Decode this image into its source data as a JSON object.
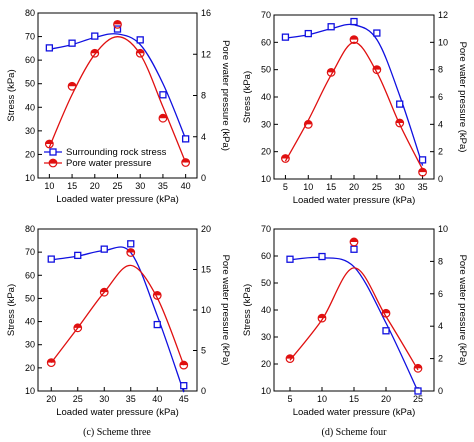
{
  "chart_data": [
    {
      "type": "line",
      "panel": "top-left",
      "caption": "",
      "xlabel": "Loaded water pressure (kPa)",
      "ylabel": "Stress (kPa)",
      "y2label": "Pore water pressure (kPa)",
      "xlim": [
        7.5,
        42.5
      ],
      "xticks": [
        10,
        15,
        20,
        25,
        30,
        35,
        40
      ],
      "ylim": [
        10,
        80
      ],
      "yticks": [
        10,
        20,
        30,
        40,
        50,
        60,
        70,
        80
      ],
      "y2lim": [
        0,
        16
      ],
      "y2ticks": [
        0,
        4,
        8,
        12,
        16
      ],
      "legend": "bottom-left",
      "series": [
        {
          "name": "Surrounding rock stress",
          "axis": "left",
          "color": "#1010e0",
          "marker": "square",
          "x": [
            10,
            15,
            20,
            25,
            30,
            35,
            40
          ],
          "y": [
            65.2,
            67.2,
            70.2,
            73.2,
            68.6,
            45.3,
            26.6
          ],
          "curve_x": [
            10,
            15,
            20,
            25,
            30,
            35,
            40
          ],
          "curve_y": [
            64.6,
            66.6,
            69.6,
            71.1,
            66.6,
            50.1,
            26.6
          ]
        },
        {
          "name": "Pore water pressure",
          "axis": "right",
          "color": "#e01010",
          "marker": "half-circle",
          "x": [
            10,
            15,
            20,
            25,
            30,
            35,
            40
          ],
          "y": [
            3.3,
            8.9,
            12.1,
            14.9,
            12.1,
            5.8,
            1.5
          ],
          "curve_x": [
            10,
            15,
            20,
            25,
            30,
            35,
            40
          ],
          "curve_y": [
            3.0,
            8.1,
            12.0,
            13.7,
            12.0,
            6.9,
            1.5
          ]
        }
      ]
    },
    {
      "type": "line",
      "panel": "top-right",
      "caption": "",
      "xlabel": "Loaded water pressure (kPa)",
      "ylabel": "Stress (kPa)",
      "y2label": "Pore water pressure (kPa)",
      "xlim": [
        2.5,
        37.5
      ],
      "xticks": [
        5,
        10,
        15,
        20,
        25,
        30,
        35
      ],
      "ylim": [
        10,
        70
      ],
      "yticks": [
        10,
        20,
        30,
        40,
        50,
        60,
        70
      ],
      "y2lim": [
        0,
        12
      ],
      "y2ticks": [
        0,
        2,
        4,
        6,
        8,
        10,
        12
      ],
      "legend": "",
      "series": [
        {
          "name": "",
          "axis": "left",
          "color": "#1010e0",
          "marker": "square",
          "x": [
            5,
            10,
            15,
            20,
            25,
            30,
            35
          ],
          "y": [
            61.9,
            63.2,
            65.7,
            67.6,
            63.4,
            37.4,
            17.0
          ],
          "curve_x": [
            5,
            10,
            15,
            20,
            25,
            30,
            35
          ],
          "curve_y": [
            61.5,
            62.8,
            65.0,
            66.4,
            61.0,
            40.5,
            14.9
          ]
        },
        {
          "name": "",
          "axis": "right",
          "color": "#e01010",
          "marker": "half-circle",
          "x": [
            5,
            10,
            15,
            20,
            25,
            30,
            35
          ],
          "y": [
            1.5,
            4.0,
            7.8,
            10.2,
            8.0,
            4.1,
            0.5
          ],
          "curve_x": [
            5,
            10,
            15,
            20,
            25,
            30,
            35
          ],
          "curve_y": [
            1.3,
            4.3,
            7.6,
            10.0,
            7.8,
            4.0,
            0.7
          ]
        }
      ]
    },
    {
      "type": "line",
      "panel": "bottom-left",
      "caption": "(c) Scheme three",
      "xlabel": "Loaded water pressure (kPa)",
      "ylabel": "Stress (kPa)",
      "y2label": "Pore water pressure (kPa)",
      "xlim": [
        17.5,
        47.5
      ],
      "xticks": [
        20,
        25,
        30,
        35,
        40,
        45
      ],
      "ylim": [
        10,
        80
      ],
      "yticks": [
        10,
        20,
        30,
        40,
        50,
        60,
        70,
        80
      ],
      "y2lim": [
        0,
        20
      ],
      "y2ticks": [
        0,
        5,
        10,
        15,
        20
      ],
      "legend": "",
      "series": [
        {
          "name": "",
          "axis": "left",
          "color": "#1010e0",
          "marker": "square",
          "x": [
            20,
            25,
            30,
            35,
            40,
            45
          ],
          "y": [
            67.0,
            68.6,
            71.3,
            73.6,
            38.7,
            12.3
          ],
          "curve_x": [
            20,
            25,
            30,
            35,
            40,
            45
          ],
          "curve_y": [
            66.7,
            68.3,
            70.7,
            69.8,
            42.5,
            9.5
          ]
        },
        {
          "name": "",
          "axis": "right",
          "color": "#e01010",
          "marker": "half-circle",
          "x": [
            20,
            25,
            30,
            35,
            40,
            45
          ],
          "y": [
            3.5,
            7.8,
            12.2,
            17.1,
            11.8,
            3.2
          ],
          "curve_x": [
            20,
            25,
            30,
            35,
            40,
            45
          ],
          "curve_y": [
            3.5,
            7.8,
            12.2,
            15.5,
            11.5,
            3.2
          ]
        }
      ]
    },
    {
      "type": "line",
      "panel": "bottom-right",
      "caption": "(d) Scheme four",
      "xlabel": "Loaded water pressure (kPa)",
      "ylabel": "Stress (kPa)",
      "y2label": "Pore water pressure (kPa)",
      "xlim": [
        2.5,
        27.5
      ],
      "xticks": [
        5,
        10,
        15,
        20,
        25
      ],
      "ylim": [
        10,
        70
      ],
      "yticks": [
        10,
        20,
        30,
        40,
        50,
        60,
        70
      ],
      "y2lim": [
        0,
        10
      ],
      "y2ticks": [
        0,
        2,
        4,
        6,
        8,
        10
      ],
      "legend": "",
      "series": [
        {
          "name": "",
          "axis": "left",
          "color": "#1010e0",
          "marker": "square",
          "x": [
            5,
            10,
            15,
            20,
            25
          ],
          "y": [
            58.8,
            59.8,
            62.5,
            32.3,
            10.0
          ],
          "curve_x": [
            5,
            10,
            15,
            20,
            25
          ],
          "curve_y": [
            58.6,
            59.4,
            56.0,
            35.2,
            9.8
          ]
        },
        {
          "name": "",
          "axis": "right",
          "color": "#e01010",
          "marker": "half-circle",
          "x": [
            5,
            10,
            15,
            20,
            25
          ],
          "y": [
            2.0,
            4.5,
            9.2,
            4.8,
            1.4
          ],
          "curve_x": [
            5,
            10,
            15,
            20,
            25
          ],
          "curve_y": [
            1.9,
            4.4,
            7.6,
            4.6,
            1.3
          ]
        }
      ]
    }
  ]
}
